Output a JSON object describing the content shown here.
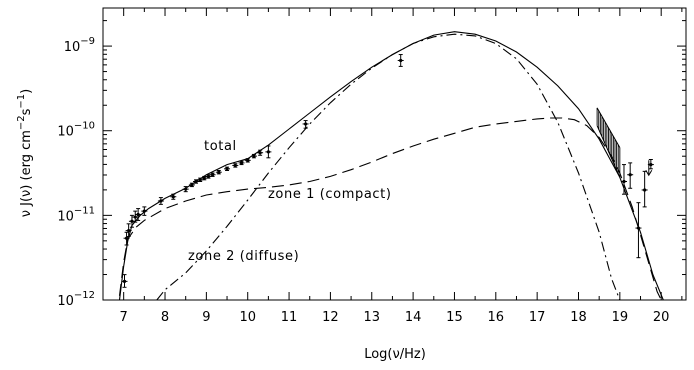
{
  "chart_data": {
    "type": "line",
    "xlabel": "Log(ν/Hz)",
    "ylabel": "ν J(ν)  (erg cm",
    "ylabel_unit_rest": "s",
    "xlim": [
      6.5,
      20.6
    ],
    "ylim_log10": [
      -12,
      -8.55
    ],
    "yscale": "log",
    "x_ticks": [
      "7",
      "8",
      "9",
      "10",
      "11",
      "12",
      "13",
      "14",
      "15",
      "16",
      "17",
      "18",
      "19",
      "20"
    ],
    "y_ticks": [
      {
        "base": "10",
        "exp": "−12",
        "log": -12
      },
      {
        "base": "10",
        "exp": "−11",
        "log": -11
      },
      {
        "base": "10",
        "exp": "−10",
        "log": -10
      },
      {
        "base": "10",
        "exp": "−9",
        "log": -9
      }
    ],
    "annotations": {
      "total": "total",
      "zone1": "zone 1 (compact)",
      "zone2": "zone 2 (diffuse)"
    },
    "series": [
      {
        "key": "total",
        "style": "solid",
        "points": [
          [
            6.9,
            -12.0
          ],
          [
            7.0,
            -11.6
          ],
          [
            7.1,
            -11.3
          ],
          [
            7.2,
            -11.12
          ],
          [
            7.4,
            -11.0
          ],
          [
            7.6,
            -10.92
          ],
          [
            7.8,
            -10.86
          ],
          [
            8.0,
            -10.8
          ],
          [
            8.5,
            -10.68
          ],
          [
            9.0,
            -10.52
          ],
          [
            9.5,
            -10.4
          ],
          [
            10.0,
            -10.33
          ],
          [
            10.5,
            -10.17
          ],
          [
            11.0,
            -9.98
          ],
          [
            11.5,
            -9.79
          ],
          [
            12.0,
            -9.6
          ],
          [
            12.5,
            -9.42
          ],
          [
            13.0,
            -9.25
          ],
          [
            13.5,
            -9.1
          ],
          [
            14.0,
            -8.97
          ],
          [
            14.5,
            -8.87
          ],
          [
            15.0,
            -8.83
          ],
          [
            15.5,
            -8.86
          ],
          [
            16.0,
            -8.94
          ],
          [
            16.5,
            -9.07
          ],
          [
            17.0,
            -9.25
          ],
          [
            17.5,
            -9.47
          ],
          [
            18.0,
            -9.74
          ],
          [
            18.5,
            -10.1
          ],
          [
            19.0,
            -10.55
          ],
          [
            19.5,
            -11.2
          ],
          [
            19.8,
            -11.7
          ],
          [
            20.05,
            -12.0
          ]
        ]
      },
      {
        "key": "zone1",
        "style": "dashed",
        "points": [
          [
            6.9,
            -11.95
          ],
          [
            7.0,
            -11.55
          ],
          [
            7.1,
            -11.28
          ],
          [
            7.3,
            -11.14
          ],
          [
            7.5,
            -11.06
          ],
          [
            8.0,
            -10.92
          ],
          [
            8.5,
            -10.83
          ],
          [
            9.0,
            -10.76
          ],
          [
            9.5,
            -10.72
          ],
          [
            10.0,
            -10.69
          ],
          [
            10.5,
            -10.67
          ],
          [
            11.0,
            -10.64
          ],
          [
            11.5,
            -10.6
          ],
          [
            12.0,
            -10.54
          ],
          [
            12.5,
            -10.46
          ],
          [
            13.0,
            -10.37
          ],
          [
            13.5,
            -10.27
          ],
          [
            14.0,
            -10.18
          ],
          [
            14.5,
            -10.1
          ],
          [
            15.0,
            -10.03
          ],
          [
            15.5,
            -9.96
          ],
          [
            16.0,
            -9.92
          ],
          [
            16.5,
            -9.89
          ],
          [
            17.0,
            -9.86
          ],
          [
            17.3,
            -9.85
          ],
          [
            17.6,
            -9.85
          ],
          [
            17.9,
            -9.87
          ],
          [
            18.2,
            -9.94
          ],
          [
            18.5,
            -10.08
          ],
          [
            18.8,
            -10.3
          ],
          [
            19.0,
            -10.5
          ],
          [
            19.3,
            -10.9
          ],
          [
            19.6,
            -11.4
          ],
          [
            19.9,
            -11.9
          ],
          [
            20.0,
            -12.0
          ]
        ]
      },
      {
        "key": "zone2",
        "style": "dashdot",
        "points": [
          [
            7.8,
            -12.0
          ],
          [
            8.0,
            -11.88
          ],
          [
            8.5,
            -11.68
          ],
          [
            9.0,
            -11.42
          ],
          [
            9.5,
            -11.13
          ],
          [
            10.0,
            -10.82
          ],
          [
            10.5,
            -10.5
          ],
          [
            11.0,
            -10.2
          ],
          [
            11.5,
            -9.92
          ],
          [
            12.0,
            -9.67
          ],
          [
            12.5,
            -9.45
          ],
          [
            13.0,
            -9.26
          ],
          [
            13.5,
            -9.1
          ],
          [
            14.0,
            -8.97
          ],
          [
            14.5,
            -8.89
          ],
          [
            15.0,
            -8.86
          ],
          [
            15.5,
            -8.88
          ],
          [
            16.0,
            -8.97
          ],
          [
            16.5,
            -9.15
          ],
          [
            17.0,
            -9.45
          ],
          [
            17.5,
            -9.9
          ],
          [
            18.0,
            -10.5
          ],
          [
            18.5,
            -11.2
          ],
          [
            18.8,
            -11.75
          ],
          [
            19.0,
            -12.0
          ]
        ]
      }
    ],
    "data_points": [
      {
        "x": 7.02,
        "y": -11.78,
        "lo": -11.85,
        "hi": -11.7
      },
      {
        "x": 7.07,
        "y": -11.27,
        "lo": -11.35,
        "hi": -11.2
      },
      {
        "x": 7.12,
        "y": -11.18,
        "lo": -11.25,
        "hi": -11.1
      },
      {
        "x": 7.2,
        "y": -11.07,
        "lo": -11.14,
        "hi": -11.0
      },
      {
        "x": 7.28,
        "y": -11.02,
        "lo": -11.08,
        "hi": -10.95
      },
      {
        "x": 7.35,
        "y": -10.99,
        "lo": -11.06,
        "hi": -10.92
      },
      {
        "x": 7.5,
        "y": -10.95,
        "lo": -11.0,
        "hi": -10.9
      },
      {
        "x": 7.9,
        "y": -10.83,
        "lo": -10.87,
        "hi": -10.79
      },
      {
        "x": 8.2,
        "y": -10.78,
        "lo": -10.81,
        "hi": -10.75
      },
      {
        "x": 8.5,
        "y": -10.69,
        "lo": -10.72,
        "hi": -10.66
      },
      {
        "x": 8.65,
        "y": -10.64,
        "lo": -10.66,
        "hi": -10.62
      },
      {
        "x": 8.75,
        "y": -10.6,
        "lo": -10.62,
        "hi": -10.58
      },
      {
        "x": 8.85,
        "y": -10.58,
        "lo": -10.6,
        "hi": -10.56
      },
      {
        "x": 8.95,
        "y": -10.56,
        "lo": -10.58,
        "hi": -10.54
      },
      {
        "x": 9.05,
        "y": -10.54,
        "lo": -10.56,
        "hi": -10.52
      },
      {
        "x": 9.15,
        "y": -10.52,
        "lo": -10.54,
        "hi": -10.5
      },
      {
        "x": 9.3,
        "y": -10.49,
        "lo": -10.51,
        "hi": -10.47
      },
      {
        "x": 9.5,
        "y": -10.45,
        "lo": -10.47,
        "hi": -10.43
      },
      {
        "x": 9.7,
        "y": -10.41,
        "lo": -10.43,
        "hi": -10.39
      },
      {
        "x": 9.85,
        "y": -10.38,
        "lo": -10.4,
        "hi": -10.36
      },
      {
        "x": 10.0,
        "y": -10.35,
        "lo": -10.37,
        "hi": -10.33
      },
      {
        "x": 10.15,
        "y": -10.3,
        "lo": -10.32,
        "hi": -10.28
      },
      {
        "x": 10.3,
        "y": -10.26,
        "lo": -10.29,
        "hi": -10.23
      },
      {
        "x": 10.5,
        "y": -10.25,
        "lo": -10.32,
        "hi": -10.18
      },
      {
        "x": 11.4,
        "y": -9.92,
        "lo": -9.97,
        "hi": -9.88
      },
      {
        "x": 13.7,
        "y": -9.17,
        "lo": -9.24,
        "hi": -9.1
      },
      {
        "x": 19.1,
        "y": -10.6,
        "lo": -10.75,
        "hi": -10.4
      },
      {
        "x": 19.25,
        "y": -10.52,
        "lo": -10.68,
        "hi": -10.38
      },
      {
        "x": 19.45,
        "y": -11.15,
        "lo": -11.5,
        "hi": -10.85
      },
      {
        "x": 19.6,
        "y": -10.7,
        "lo": -10.9,
        "hi": -10.48
      },
      {
        "x": 19.75,
        "y": -10.4,
        "lo": -10.45,
        "hi": -10.34
      }
    ],
    "band": {
      "x0": 18.45,
      "x1": 19.0,
      "top": [
        -9.73,
        -10.2
      ],
      "bottom": [
        -9.94,
        -10.55
      ]
    }
  }
}
